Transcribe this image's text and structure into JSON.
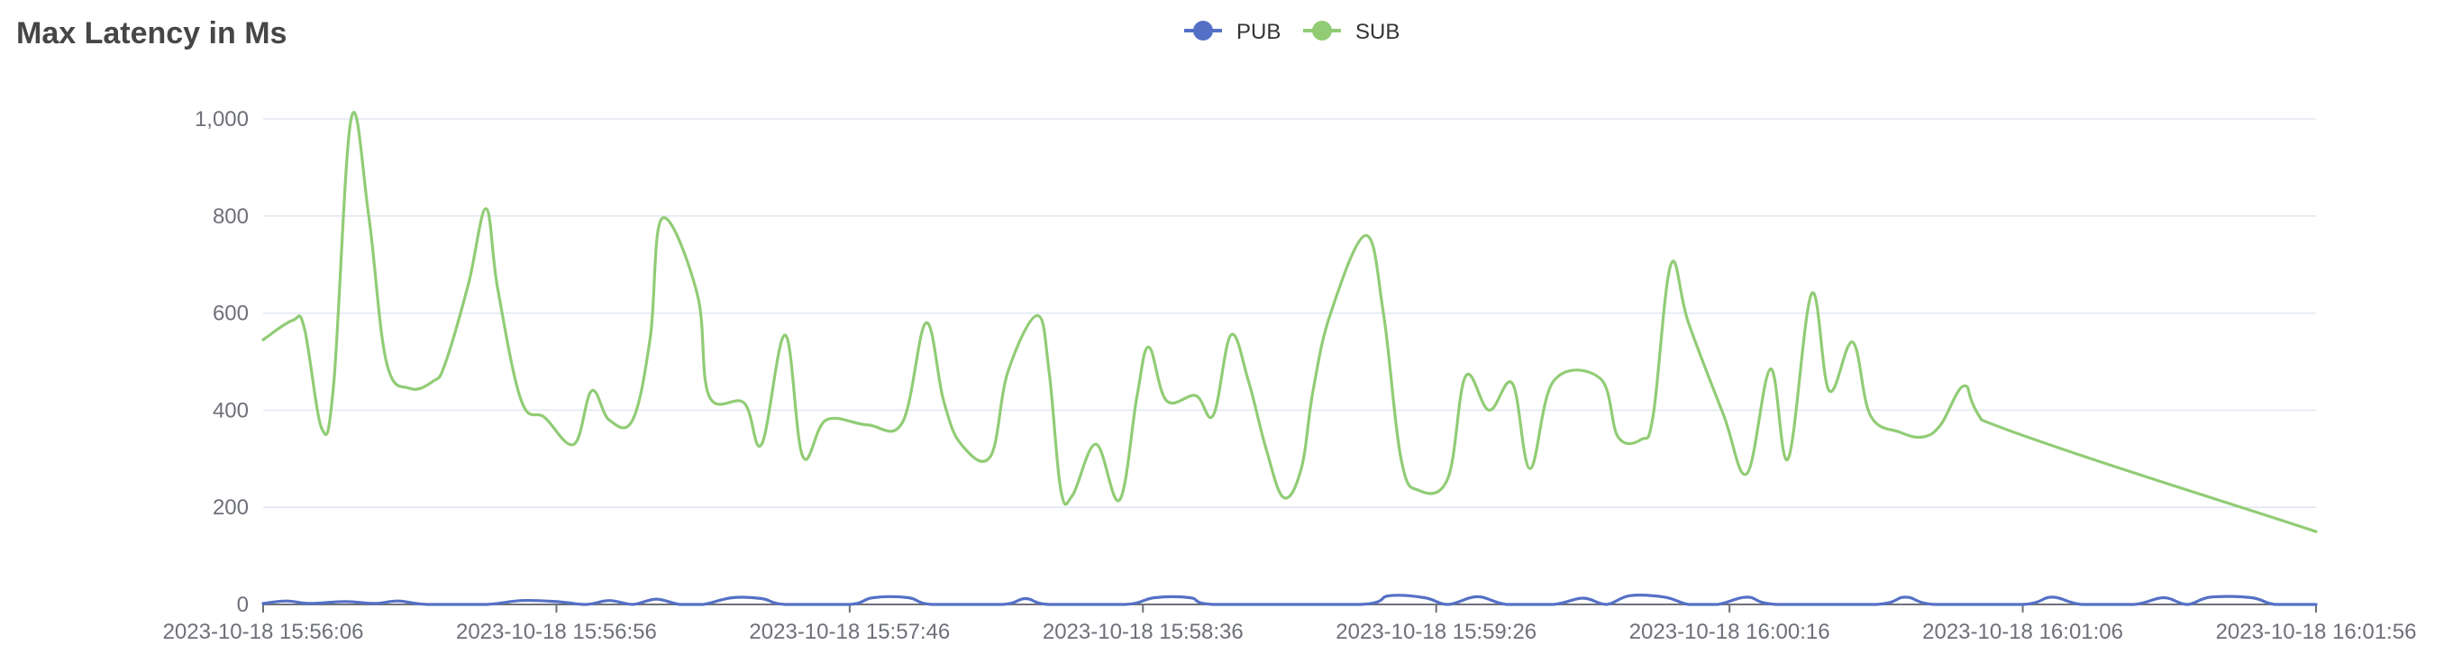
{
  "chart_data": {
    "type": "line",
    "title": "Max Latency in Ms",
    "legend_position": "top-center",
    "grid": true,
    "ylim": [
      0,
      1000
    ],
    "y_ticks": [
      "0",
      "200",
      "400",
      "600",
      "800",
      "1,000"
    ],
    "x_ticks": [
      "2023-10-18 15:56:06",
      "2023-10-18 15:56:56",
      "2023-10-18 15:57:46",
      "2023-10-18 15:58:36",
      "2023-10-18 15:59:26",
      "2023-10-18 16:00:16",
      "2023-10-18 16:01:06",
      "2023-10-18 16:01:56"
    ],
    "x_start": "2023-10-18 15:56:06",
    "x_end": "2023-10-18 16:01:56",
    "series": [
      {
        "name": "PUB",
        "color": "#5470c6",
        "points": [
          [
            "2023-10-18 15:56:06",
            2
          ],
          [
            "2023-10-18 15:56:10",
            7
          ],
          [
            "2023-10-18 15:56:14",
            2
          ],
          [
            "2023-10-18 15:56:20",
            6
          ],
          [
            "2023-10-18 15:56:25",
            2
          ],
          [
            "2023-10-18 15:56:29",
            7
          ],
          [
            "2023-10-18 15:56:34",
            0
          ],
          [
            "2023-10-18 15:56:44",
            0
          ],
          [
            "2023-10-18 15:56:50",
            8
          ],
          [
            "2023-10-18 15:56:56",
            6
          ],
          [
            "2023-10-18 15:57:01",
            0
          ],
          [
            "2023-10-18 15:57:05",
            8
          ],
          [
            "2023-10-18 15:57:09",
            0
          ],
          [
            "2023-10-18 15:57:13",
            11
          ],
          [
            "2023-10-18 15:57:17",
            0
          ],
          [
            "2023-10-18 15:57:21",
            0
          ],
          [
            "2023-10-18 15:57:26",
            14
          ],
          [
            "2023-10-18 15:57:31",
            12
          ],
          [
            "2023-10-18 15:57:35",
            0
          ],
          [
            "2023-10-18 15:57:46",
            0
          ],
          [
            "2023-10-18 15:57:50",
            14
          ],
          [
            "2023-10-18 15:57:56",
            14
          ],
          [
            "2023-10-18 15:58:00",
            0
          ],
          [
            "2023-10-18 15:58:12",
            0
          ],
          [
            "2023-10-18 15:58:16",
            12
          ],
          [
            "2023-10-18 15:58:20",
            0
          ],
          [
            "2023-10-18 15:58:33",
            0
          ],
          [
            "2023-10-18 15:58:38",
            14
          ],
          [
            "2023-10-18 15:58:44",
            14
          ],
          [
            "2023-10-18 15:58:48",
            0
          ],
          [
            "2023-10-18 15:59:13",
            0
          ],
          [
            "2023-10-18 15:59:18",
            18
          ],
          [
            "2023-10-18 15:59:24",
            14
          ],
          [
            "2023-10-18 15:59:28",
            0
          ],
          [
            "2023-10-18 15:59:33",
            16
          ],
          [
            "2023-10-18 15:59:38",
            0
          ],
          [
            "2023-10-18 15:59:46",
            0
          ],
          [
            "2023-10-18 15:59:51",
            13
          ],
          [
            "2023-10-18 15:59:55",
            0
          ],
          [
            "2023-10-18 15:59:59",
            18
          ],
          [
            "2023-10-18 16:00:05",
            15
          ],
          [
            "2023-10-18 16:00:09",
            0
          ],
          [
            "2023-10-18 16:00:14",
            0
          ],
          [
            "2023-10-18 16:00:19",
            15
          ],
          [
            "2023-10-18 16:00:24",
            0
          ],
          [
            "2023-10-18 16:00:41",
            0
          ],
          [
            "2023-10-18 16:00:46",
            15
          ],
          [
            "2023-10-18 16:00:51",
            0
          ],
          [
            "2023-10-18 16:01:06",
            0
          ],
          [
            "2023-10-18 16:01:11",
            15
          ],
          [
            "2023-10-18 16:01:16",
            0
          ],
          [
            "2023-10-18 16:01:25",
            0
          ],
          [
            "2023-10-18 16:01:30",
            14
          ],
          [
            "2023-10-18 16:01:34",
            0
          ],
          [
            "2023-10-18 16:01:38",
            15
          ],
          [
            "2023-10-18 16:01:45",
            14
          ],
          [
            "2023-10-18 16:01:49",
            0
          ],
          [
            "2023-10-18 16:01:56",
            0
          ]
        ]
      },
      {
        "name": "SUB",
        "color": "#91cc75",
        "points": [
          [
            "2023-10-18 15:56:06",
            545
          ],
          [
            "2023-10-18 15:56:11",
            585
          ],
          [
            "2023-10-18 15:56:13",
            570
          ],
          [
            "2023-10-18 15:56:16",
            362
          ],
          [
            "2023-10-18 15:56:18",
            450
          ],
          [
            "2023-10-18 15:56:21",
            1000
          ],
          [
            "2023-10-18 15:56:24",
            800
          ],
          [
            "2023-10-18 15:56:27",
            500
          ],
          [
            "2023-10-18 15:56:31",
            445
          ],
          [
            "2023-10-18 15:56:35",
            460
          ],
          [
            "2023-10-18 15:56:37",
            495
          ],
          [
            "2023-10-18 15:56:41",
            660
          ],
          [
            "2023-10-18 15:56:44",
            815
          ],
          [
            "2023-10-18 15:56:46",
            650
          ],
          [
            "2023-10-18 15:56:50",
            420
          ],
          [
            "2023-10-18 15:56:54",
            385
          ],
          [
            "2023-10-18 15:56:59",
            330
          ],
          [
            "2023-10-18 15:57:02",
            440
          ],
          [
            "2023-10-18 15:57:05",
            380
          ],
          [
            "2023-10-18 15:57:09",
            380
          ],
          [
            "2023-10-18 15:57:12",
            550
          ],
          [
            "2023-10-18 15:57:14",
            795
          ],
          [
            "2023-10-18 15:57:20",
            640
          ],
          [
            "2023-10-18 15:57:22",
            430
          ],
          [
            "2023-10-18 15:57:28",
            415
          ],
          [
            "2023-10-18 15:57:31",
            330
          ],
          [
            "2023-10-18 15:57:35",
            555
          ],
          [
            "2023-10-18 15:57:38",
            305
          ],
          [
            "2023-10-18 15:57:42",
            380
          ],
          [
            "2023-10-18 15:57:49",
            370
          ],
          [
            "2023-10-18 15:57:55",
            375
          ],
          [
            "2023-10-18 15:57:59",
            580
          ],
          [
            "2023-10-18 15:58:02",
            420
          ],
          [
            "2023-10-18 15:58:05",
            330
          ],
          [
            "2023-10-18 15:58:10",
            305
          ],
          [
            "2023-10-18 15:58:13",
            480
          ],
          [
            "2023-10-18 15:58:18",
            595
          ],
          [
            "2023-10-18 15:58:20",
            480
          ],
          [
            "2023-10-18 15:58:22",
            235
          ],
          [
            "2023-10-18 15:58:24",
            225
          ],
          [
            "2023-10-18 15:58:28",
            330
          ],
          [
            "2023-10-18 15:58:32",
            215
          ],
          [
            "2023-10-18 15:58:35",
            430
          ],
          [
            "2023-10-18 15:58:37",
            530
          ],
          [
            "2023-10-18 15:58:40",
            420
          ],
          [
            "2023-10-18 15:58:45",
            430
          ],
          [
            "2023-10-18 15:58:48",
            390
          ],
          [
            "2023-10-18 15:58:51",
            555
          ],
          [
            "2023-10-18 15:58:54",
            460
          ],
          [
            "2023-10-18 15:58:57",
            320
          ],
          [
            "2023-10-18 15:59:00",
            220
          ],
          [
            "2023-10-18 15:59:03",
            280
          ],
          [
            "2023-10-18 15:59:05",
            440
          ],
          [
            "2023-10-18 15:59:08",
            600
          ],
          [
            "2023-10-18 15:59:14",
            760
          ],
          [
            "2023-10-18 15:59:17",
            600
          ],
          [
            "2023-10-18 15:59:20",
            300
          ],
          [
            "2023-10-18 15:59:23",
            235
          ],
          [
            "2023-10-18 15:59:28",
            260
          ],
          [
            "2023-10-18 15:59:31",
            470
          ],
          [
            "2023-10-18 15:59:35",
            400
          ],
          [
            "2023-10-18 15:59:39",
            455
          ],
          [
            "2023-10-18 15:59:42",
            280
          ],
          [
            "2023-10-18 15:59:46",
            460
          ],
          [
            "2023-10-18 15:59:54",
            465
          ],
          [
            "2023-10-18 15:59:57",
            345
          ],
          [
            "2023-10-18 16:00:01",
            340
          ],
          [
            "2023-10-18 16:00:03",
            390
          ],
          [
            "2023-10-18 16:00:06",
            700
          ],
          [
            "2023-10-18 16:00:09",
            580
          ],
          [
            "2023-10-18 16:00:15",
            390
          ],
          [
            "2023-10-18 16:00:19",
            270
          ],
          [
            "2023-10-18 16:00:23",
            485
          ],
          [
            "2023-10-18 16:00:26",
            300
          ],
          [
            "2023-10-18 16:00:30",
            640
          ],
          [
            "2023-10-18 16:00:33",
            440
          ],
          [
            "2023-10-18 16:00:37",
            540
          ],
          [
            "2023-10-18 16:00:40",
            390
          ],
          [
            "2023-10-18 16:00:45",
            355
          ],
          [
            "2023-10-18 16:00:49",
            345
          ],
          [
            "2023-10-18 16:00:52",
            370
          ],
          [
            "2023-10-18 16:00:56",
            450
          ],
          [
            "2023-10-18 16:00:59",
            380
          ],
          [
            "2023-10-18 16:01:56",
            150
          ]
        ]
      }
    ]
  }
}
